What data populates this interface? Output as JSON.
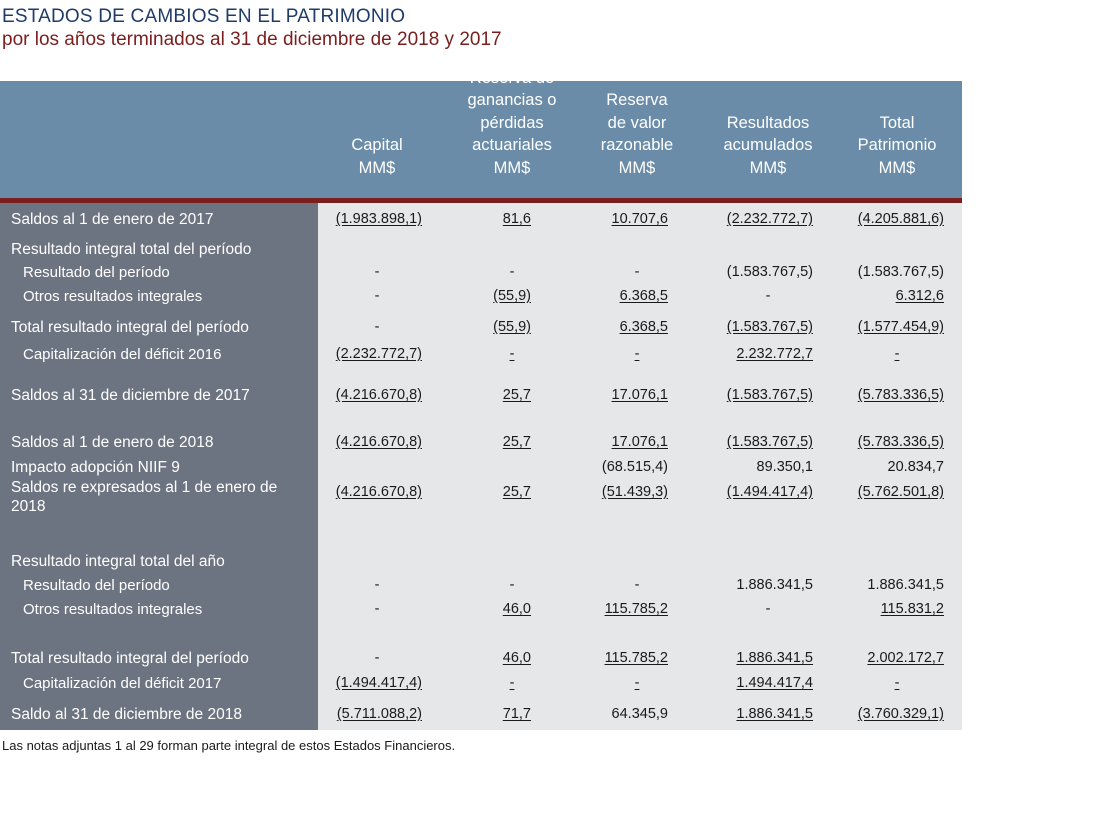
{
  "document": {
    "title": "ESTADOS DE CAMBIOS EN EL PATRIMONIO",
    "subtitle": "por los años terminados al 31 de diciembre de 2018 y 2017",
    "footnote": "Las notas adjuntas 1 al 29 forman parte integral de estos Estados Financieros."
  },
  "columns": [
    {
      "lines": [
        "Capital",
        "MM$"
      ]
    },
    {
      "lines": [
        "Reserva de",
        "ganancias o",
        "pérdidas",
        "actuariales",
        "MM$"
      ]
    },
    {
      "lines": [
        "Reserva",
        "de valor",
        "razonable",
        "MM$"
      ]
    },
    {
      "lines": [
        "Resultados",
        "acumulados",
        "MM$"
      ]
    },
    {
      "lines": [
        "Total",
        "Patrimonio",
        "MM$"
      ]
    }
  ],
  "rows": [
    {
      "label": "Saldos al 1 de enero de 2017",
      "style": "main",
      "values": [
        "(1.983.898,1)",
        "81,6",
        "10.707,6",
        "(2.232.772,7)",
        "(4.205.881,6)"
      ],
      "underline": [
        true,
        true,
        true,
        true,
        true
      ]
    },
    {
      "label": "Resultado integral total del período",
      "style": "main",
      "values": [
        "",
        "",
        "",
        "",
        ""
      ],
      "underline": [
        false,
        false,
        false,
        false,
        false
      ]
    },
    {
      "label": "Resultado del período",
      "style": "sub",
      "values": [
        "-",
        "-",
        "-",
        "(1.583.767,5)",
        "(1.583.767,5)"
      ],
      "underline": [
        false,
        false,
        false,
        false,
        false
      ]
    },
    {
      "label": "Otros resultados integrales",
      "style": "sub",
      "values": [
        "-",
        "(55,9)",
        "6.368,5",
        "-",
        "6.312,6"
      ],
      "underline": [
        false,
        true,
        true,
        false,
        true
      ]
    },
    {
      "label": "Total resultado integral del período",
      "style": "main",
      "values": [
        "-",
        "(55,9)",
        "6.368,5",
        "(1.583.767,5)",
        "(1.577.454,9)"
      ],
      "underline": [
        false,
        true,
        true,
        true,
        true
      ]
    },
    {
      "label": "Capitalización del déficit 2016",
      "style": "sub",
      "values": [
        "(2.232.772,7)",
        "-",
        "-",
        "2.232.772,7",
        "-"
      ],
      "underline": [
        true,
        true,
        true,
        true,
        true
      ]
    },
    {
      "label": "Saldos al 31 de diciembre de 2017",
      "style": "main",
      "values": [
        "(4.216.670,8)",
        "25,7",
        "17.076,1",
        "(1.583.767,5)",
        "(5.783.336,5)"
      ],
      "underline": [
        true,
        true,
        true,
        true,
        true
      ]
    },
    {
      "label": "Saldos al 1 de enero de 2018",
      "style": "main",
      "values": [
        "(4.216.670,8)",
        "25,7",
        "17.076,1",
        "(1.583.767,5)",
        "(5.783.336,5)"
      ],
      "underline": [
        true,
        true,
        true,
        true,
        true
      ]
    },
    {
      "label": "Impacto adopción NIIF 9",
      "style": "main",
      "values": [
        "",
        "",
        "(68.515,4)",
        "89.350,1",
        "20.834,7"
      ],
      "underline": [
        false,
        false,
        false,
        false,
        false
      ]
    },
    {
      "label": "Saldos re expresados al 1 de enero de 2018",
      "style": "wrap",
      "values": [
        "(4.216.670,8)",
        "25,7",
        "(51.439,3)",
        "(1.494.417,4)",
        "(5.762.501,8)"
      ],
      "underline": [
        true,
        true,
        true,
        true,
        true
      ]
    },
    {
      "label": "Resultado integral total del año",
      "style": "main",
      "values": [
        "",
        "",
        "",
        "",
        ""
      ],
      "underline": [
        false,
        false,
        false,
        false,
        false
      ]
    },
    {
      "label": "Resultado del período",
      "style": "sub",
      "values": [
        "-",
        "-",
        "-",
        "1.886.341,5",
        "1.886.341,5"
      ],
      "underline": [
        false,
        false,
        false,
        false,
        false
      ]
    },
    {
      "label": "Otros resultados integrales",
      "style": "sub",
      "values": [
        "-",
        "46,0",
        "115.785,2",
        "-",
        "115.831,2"
      ],
      "underline": [
        false,
        true,
        true,
        false,
        true
      ]
    },
    {
      "label": "Total resultado integral del período",
      "style": "main",
      "values": [
        "-",
        "46,0",
        "115.785,2",
        "1.886.341,5",
        "2.002.172,7"
      ],
      "underline": [
        false,
        true,
        true,
        true,
        true
      ]
    },
    {
      "label": "Capitalización del déficit 2017",
      "style": "sub",
      "values": [
        "(1.494.417,4)",
        "-",
        "-",
        "1.494.417,4",
        "-"
      ],
      "underline": [
        true,
        true,
        true,
        true,
        true
      ]
    },
    {
      "label": "Saldo al 31 de diciembre de 2018",
      "style": "main",
      "values": [
        "(5.711.088,2)",
        "71,7",
        "64.345,9",
        "1.886.341,5",
        "(3.760.329,1)"
      ],
      "underline": [
        true,
        true,
        false,
        true,
        true
      ]
    }
  ]
}
